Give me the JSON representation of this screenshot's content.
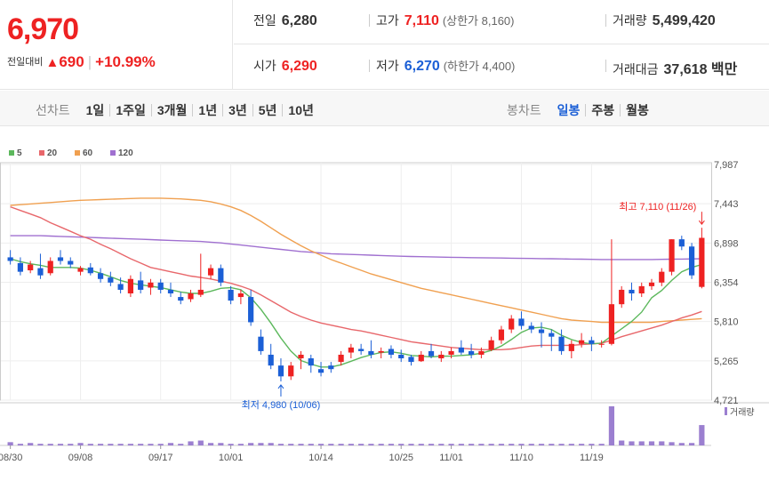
{
  "quote": {
    "price": "6,970",
    "change_label": "전일대비",
    "change_arrow": "▲",
    "change": "690",
    "change_pct": "+10.99%"
  },
  "info": {
    "prev_close_label": "전일",
    "prev_close": "6,280",
    "high_label": "고가",
    "high": "7,110",
    "upper_limit": "(상한가 8,160)",
    "volume_label": "거래량",
    "volume": "5,499,420",
    "open_label": "시가",
    "open": "6,290",
    "low_label": "저가",
    "low": "6,270",
    "lower_limit": "(하한가 4,400)",
    "value_label": "거래대금",
    "value": "37,618 백만"
  },
  "toolbar": {
    "line_label": "선차트",
    "periods": [
      "1일",
      "1주일",
      "3개월",
      "1년",
      "3년",
      "5년",
      "10년"
    ],
    "candle_label": "봉차트",
    "candles": [
      "일봉",
      "주봉",
      "월봉"
    ],
    "active_candle": "일봉"
  },
  "colors": {
    "up": "#e22",
    "down": "#1b5fd6",
    "ma5": "#5cb85c",
    "ma20": "#e8676b",
    "ma60": "#f0a050",
    "ma120": "#a070d0",
    "volume": "#9b7fd0"
  },
  "chart_data": {
    "type": "candlestick",
    "legend": [
      {
        "name": "5",
        "color": "#5cb85c"
      },
      {
        "name": "20",
        "color": "#e8676b"
      },
      {
        "name": "60",
        "color": "#f0a050"
      },
      {
        "name": "120",
        "color": "#a070d0"
      }
    ],
    "y_ticks": [
      "7,987",
      "7,443",
      "6,898",
      "6,354",
      "5,810",
      "5,265",
      "4,721"
    ],
    "ylim": [
      4721,
      7987
    ],
    "x_ticks": [
      "08/30",
      "09/08",
      "09/17",
      "10/01",
      "10/14",
      "10/25",
      "11/01",
      "11/10",
      "11/19"
    ],
    "x_tick_index": [
      0,
      7,
      15,
      22,
      31,
      39,
      44,
      51,
      58
    ],
    "annotation_high": "최고 7,110 (11/26)",
    "annotation_low": "최저 4,980 (10/06)",
    "volume_label": "거래량",
    "candles": [
      [
        6700,
        6800,
        6600,
        6650
      ],
      [
        6620,
        6700,
        6450,
        6500
      ],
      [
        6520,
        6650,
        6480,
        6600
      ],
      [
        6550,
        6750,
        6400,
        6450
      ],
      [
        6480,
        6700,
        6450,
        6650
      ],
      [
        6700,
        6800,
        6600,
        6650
      ],
      [
        6650,
        6700,
        6550,
        6600
      ],
      [
        6500,
        6580,
        6450,
        6550
      ],
      [
        6560,
        6620,
        6450,
        6480
      ],
      [
        6480,
        6550,
        6350,
        6400
      ],
      [
        6420,
        6500,
        6300,
        6350
      ],
      [
        6330,
        6420,
        6200,
        6250
      ],
      [
        6200,
        6450,
        6150,
        6400
      ],
      [
        6380,
        6500,
        6200,
        6250
      ],
      [
        6280,
        6400,
        6180,
        6350
      ],
      [
        6350,
        6400,
        6200,
        6250
      ],
      [
        6250,
        6350,
        6150,
        6200
      ],
      [
        6150,
        6220,
        6050,
        6100
      ],
      [
        6120,
        6250,
        6080,
        6200
      ],
      [
        6180,
        6750,
        6150,
        6250
      ],
      [
        6450,
        6600,
        6400,
        6550
      ],
      [
        6550,
        6600,
        6300,
        6350
      ],
      [
        6250,
        6300,
        6050,
        6100
      ],
      [
        6150,
        6250,
        6050,
        6200
      ],
      [
        6150,
        6250,
        5750,
        5800
      ],
      [
        5600,
        5700,
        5350,
        5400
      ],
      [
        5350,
        5500,
        5150,
        5200
      ],
      [
        5200,
        5300,
        4980,
        5050
      ],
      [
        5050,
        5250,
        5000,
        5200
      ],
      [
        5300,
        5400,
        5150,
        5350
      ],
      [
        5300,
        5350,
        5100,
        5200
      ],
      [
        5150,
        5250,
        5050,
        5100
      ],
      [
        5200,
        5250,
        5100,
        5150
      ],
      [
        5250,
        5400,
        5200,
        5350
      ],
      [
        5380,
        5500,
        5300,
        5450
      ],
      [
        5430,
        5500,
        5350,
        5400
      ],
      [
        5400,
        5550,
        5300,
        5350
      ],
      [
        5380,
        5450,
        5300,
        5400
      ],
      [
        5430,
        5480,
        5300,
        5350
      ],
      [
        5350,
        5420,
        5250,
        5300
      ],
      [
        5320,
        5350,
        5200,
        5250
      ],
      [
        5260,
        5400,
        5250,
        5350
      ],
      [
        5400,
        5500,
        5300,
        5330
      ],
      [
        5300,
        5400,
        5250,
        5350
      ],
      [
        5350,
        5450,
        5300,
        5400
      ],
      [
        5450,
        5550,
        5350,
        5380
      ],
      [
        5400,
        5500,
        5300,
        5350
      ],
      [
        5350,
        5450,
        5300,
        5400
      ],
      [
        5420,
        5600,
        5400,
        5550
      ],
      [
        5550,
        5750,
        5500,
        5700
      ],
      [
        5700,
        5900,
        5650,
        5850
      ],
      [
        5850,
        5950,
        5700,
        5750
      ],
      [
        5750,
        5800,
        5650,
        5700
      ],
      [
        5700,
        5800,
        5450,
        5650
      ],
      [
        5650,
        5700,
        5400,
        5600
      ],
      [
        5600,
        5700,
        5350,
        5400
      ],
      [
        5400,
        5550,
        5300,
        5500
      ],
      [
        5500,
        5650,
        5450,
        5550
      ],
      [
        5550,
        5600,
        5400,
        5500
      ],
      [
        5500,
        5550,
        5450,
        5500
      ],
      [
        5500,
        6950,
        5480,
        6050
      ],
      [
        6050,
        6300,
        6000,
        6250
      ],
      [
        6250,
        6350,
        6100,
        6200
      ],
      [
        6200,
        6350,
        6150,
        6300
      ],
      [
        6300,
        6400,
        6250,
        6350
      ],
      [
        6350,
        6550,
        6300,
        6500
      ],
      [
        6500,
        6950,
        6450,
        6950
      ],
      [
        6950,
        7000,
        6800,
        6850
      ],
      [
        6850,
        6900,
        6400,
        6450
      ],
      [
        6290,
        7110,
        6270,
        6970
      ]
    ],
    "ma5": [
      6680,
      6640,
      6610,
      6590,
      6560,
      6560,
      6560,
      6550,
      6520,
      6480,
      6430,
      6380,
      6340,
      6320,
      6300,
      6280,
      6250,
      6220,
      6200,
      6200,
      6230,
      6270,
      6280,
      6250,
      6140,
      5980,
      5790,
      5580,
      5400,
      5270,
      5220,
      5180,
      5180,
      5210,
      5260,
      5310,
      5350,
      5380,
      5390,
      5370,
      5340,
      5330,
      5320,
      5330,
      5330,
      5340,
      5350,
      5370,
      5410,
      5470,
      5560,
      5660,
      5720,
      5730,
      5700,
      5620,
      5560,
      5520,
      5500,
      5510,
      5610,
      5710,
      5810,
      5940,
      6140,
      6240,
      6380,
      6500,
      6560,
      6600
    ],
    "ma20": [
      7400,
      7350,
      7300,
      7250,
      7180,
      7120,
      7060,
      7000,
      6950,
      6880,
      6820,
      6750,
      6680,
      6620,
      6560,
      6530,
      6500,
      6470,
      6440,
      6420,
      6400,
      6370,
      6340,
      6300,
      6250,
      6180,
      6100,
      6020,
      5940,
      5880,
      5830,
      5790,
      5760,
      5730,
      5700,
      5680,
      5650,
      5620,
      5590,
      5560,
      5530,
      5510,
      5490,
      5470,
      5450,
      5440,
      5430,
      5420,
      5420,
      5420,
      5430,
      5450,
      5470,
      5480,
      5480,
      5480,
      5480,
      5490,
      5500,
      5510,
      5550,
      5600,
      5640,
      5680,
      5720,
      5760,
      5810,
      5860,
      5900,
      5950
    ],
    "ma60": [
      7420,
      7430,
      7440,
      7450,
      7460,
      7470,
      7480,
      7490,
      7495,
      7500,
      7505,
      7510,
      7515,
      7520,
      7520,
      7520,
      7515,
      7510,
      7500,
      7490,
      7470,
      7440,
      7400,
      7350,
      7280,
      7200,
      7110,
      7020,
      6940,
      6860,
      6790,
      6730,
      6670,
      6620,
      6570,
      6520,
      6470,
      6430,
      6390,
      6350,
      6310,
      6270,
      6240,
      6210,
      6180,
      6150,
      6120,
      6090,
      6060,
      6030,
      6000,
      5970,
      5940,
      5910,
      5880,
      5850,
      5830,
      5820,
      5810,
      5800,
      5800,
      5800,
      5800,
      5800,
      5800,
      5810,
      5820,
      5830,
      5840,
      5850
    ],
    "ma120": [
      7000,
      7000,
      7000,
      7000,
      6995,
      6990,
      6985,
      6980,
      6975,
      6970,
      6965,
      6960,
      6955,
      6950,
      6945,
      6940,
      6935,
      6930,
      6925,
      6920,
      6910,
      6900,
      6885,
      6870,
      6855,
      6840,
      6825,
      6810,
      6795,
      6780,
      6770,
      6760,
      6750,
      6745,
      6740,
      6735,
      6730,
      6725,
      6720,
      6715,
      6712,
      6709,
      6706,
      6703,
      6700,
      6698,
      6696,
      6694,
      6692,
      6690,
      6688,
      6686,
      6684,
      6682,
      6680,
      6678,
      6676,
      6674,
      6672,
      6670,
      6670,
      6670,
      6670,
      6670,
      6670,
      6672,
      6674,
      6676,
      6678,
      6680
    ],
    "volume": [
      4,
      2,
      3,
      2,
      2,
      2,
      2,
      3,
      2,
      2,
      2,
      2,
      2,
      2,
      2,
      2,
      3,
      2,
      5,
      6,
      3,
      3,
      2,
      2,
      3,
      3,
      3,
      2,
      2,
      2,
      2,
      2,
      2,
      2,
      2,
      2,
      2,
      2,
      2,
      2,
      2,
      2,
      2,
      2,
      2,
      2,
      2,
      2,
      2,
      2,
      2,
      2,
      2,
      2,
      2,
      2,
      2,
      2,
      2,
      2,
      48,
      6,
      5,
      5,
      5,
      5,
      4,
      3,
      3,
      25
    ]
  }
}
